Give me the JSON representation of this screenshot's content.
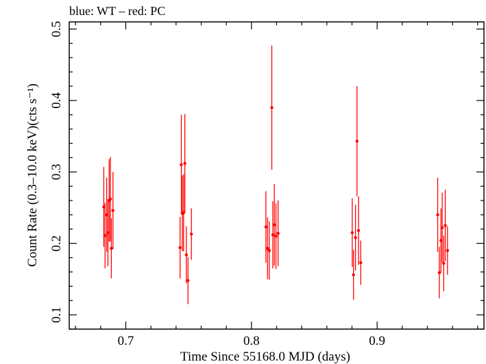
{
  "chart_data": {
    "type": "scatter",
    "title": "blue: WT – red: PC",
    "xlabel": "Time Since 55168.0 MJD (days)",
    "ylabel": "Count Rate (0.3–10.0 keV)(cts s⁻¹)",
    "xlim": [
      0.655,
      0.985
    ],
    "ylim": [
      0.08,
      0.51
    ],
    "xticks": [
      0.7,
      0.8,
      0.9
    ],
    "xtick_labels": [
      "0.7",
      "0.8",
      "0.9"
    ],
    "yticks": [
      0.1,
      0.2,
      0.3,
      0.4,
      0.5
    ],
    "ytick_labels": [
      "0.1",
      "0.2",
      "0.3",
      "0.4",
      "0.5"
    ],
    "grid": false,
    "series": [
      {
        "name": "PC",
        "color": "#ff0000",
        "points": [
          {
            "x": 0.6825,
            "y": 0.251,
            "err": 0.056
          },
          {
            "x": 0.6835,
            "y": 0.211,
            "err": 0.046
          },
          {
            "x": 0.6848,
            "y": 0.24,
            "err": 0.052
          },
          {
            "x": 0.6858,
            "y": 0.215,
            "err": 0.047
          },
          {
            "x": 0.6868,
            "y": 0.26,
            "err": 0.058
          },
          {
            "x": 0.6878,
            "y": 0.262,
            "err": 0.059
          },
          {
            "x": 0.6885,
            "y": 0.193,
            "err": 0.042
          },
          {
            "x": 0.6898,
            "y": 0.246,
            "err": 0.054
          },
          {
            "x": 0.7432,
            "y": 0.194,
            "err": 0.043
          },
          {
            "x": 0.7442,
            "y": 0.31,
            "err": 0.07
          },
          {
            "x": 0.745,
            "y": 0.242,
            "err": 0.053
          },
          {
            "x": 0.746,
            "y": 0.243,
            "err": 0.054
          },
          {
            "x": 0.747,
            "y": 0.312,
            "err": 0.069
          },
          {
            "x": 0.7482,
            "y": 0.184,
            "err": 0.04
          },
          {
            "x": 0.7495,
            "y": 0.148,
            "err": 0.033
          },
          {
            "x": 0.7522,
            "y": 0.213,
            "err": 0.036
          },
          {
            "x": 0.8115,
            "y": 0.223,
            "err": 0.05
          },
          {
            "x": 0.8128,
            "y": 0.193,
            "err": 0.043
          },
          {
            "x": 0.8142,
            "y": 0.19,
            "err": 0.041
          },
          {
            "x": 0.8162,
            "y": 0.39,
            "err": 0.087
          },
          {
            "x": 0.817,
            "y": 0.212,
            "err": 0.047
          },
          {
            "x": 0.8182,
            "y": 0.226,
            "err": 0.057
          },
          {
            "x": 0.8195,
            "y": 0.21,
            "err": 0.046
          },
          {
            "x": 0.8212,
            "y": 0.214,
            "err": 0.046
          },
          {
            "x": 0.8802,
            "y": 0.215,
            "err": 0.048
          },
          {
            "x": 0.8812,
            "y": 0.156,
            "err": 0.035
          },
          {
            "x": 0.8828,
            "y": 0.208,
            "err": 0.046
          },
          {
            "x": 0.884,
            "y": 0.343,
            "err": 0.077
          },
          {
            "x": 0.8852,
            "y": 0.218,
            "err": 0.048
          },
          {
            "x": 0.887,
            "y": 0.173,
            "err": 0.031
          },
          {
            "x": 0.9482,
            "y": 0.24,
            "err": 0.052
          },
          {
            "x": 0.9495,
            "y": 0.159,
            "err": 0.036
          },
          {
            "x": 0.9508,
            "y": 0.204,
            "err": 0.045
          },
          {
            "x": 0.9518,
            "y": 0.222,
            "err": 0.049
          },
          {
            "x": 0.953,
            "y": 0.172,
            "err": 0.039
          },
          {
            "x": 0.9542,
            "y": 0.225,
            "err": 0.05
          },
          {
            "x": 0.956,
            "y": 0.19,
            "err": 0.034
          }
        ]
      }
    ]
  }
}
